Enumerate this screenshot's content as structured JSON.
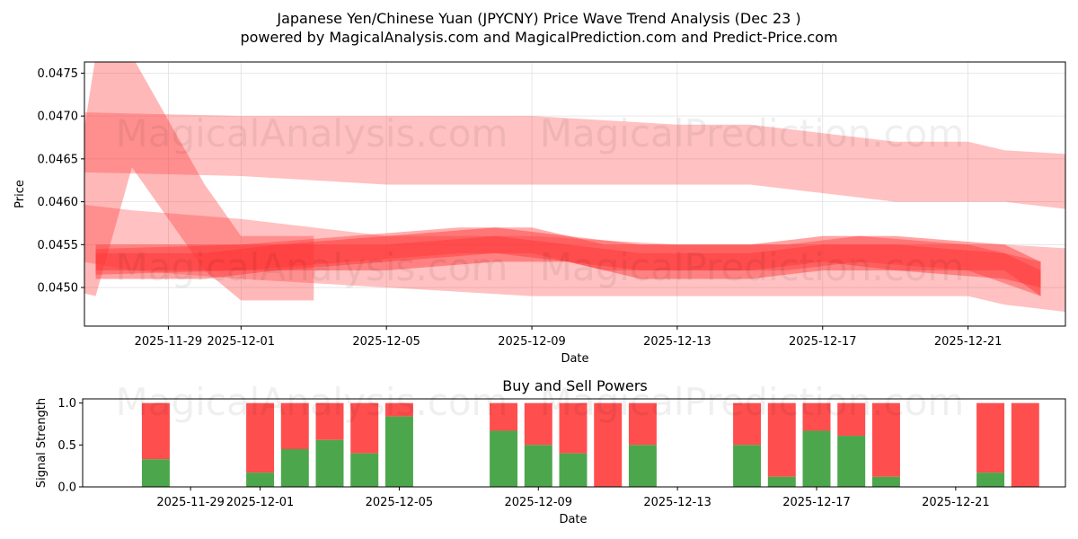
{
  "figure": {
    "title": "Japanese Yen/Chinese Yuan (JPYCNY) Price Wave Trend Analysis (Dec 23 )",
    "subtitle": "powered by MagicalAnalysis.com and MagicalPrediction.com and Predict-Price.com",
    "watermarks": [
      "MagicalAnalysis.com",
      "MagicalPrediction.com"
    ]
  },
  "colors": {
    "buy": "#4ca64c",
    "sell": "#ff4444",
    "wave": "#ff3333",
    "grid": "#e0e0e0"
  },
  "chart_data": [
    {
      "type": "area",
      "name": "price-wave-chart",
      "xlabel": "Date",
      "ylabel": "Price",
      "x_domain": [
        "2025-11-26",
        "2025-12-24"
      ],
      "ylim": [
        0.04455,
        0.04763
      ],
      "yticks": [
        0.045,
        0.0455,
        0.046,
        0.0465,
        0.047,
        0.0475
      ],
      "ytick_labels": [
        "0.0450",
        "0.0455",
        "0.0460",
        "0.0465",
        "0.0470",
        "0.0475"
      ],
      "xticks": [
        "2025-11-29",
        "2025-12-01",
        "2025-12-05",
        "2025-12-09",
        "2025-12-13",
        "2025-12-17",
        "2025-12-21"
      ],
      "grid": true,
      "series": [
        {
          "name": "upper-wave",
          "opacity": 0.3,
          "x": [
            "2025-11-26",
            "2025-12-01",
            "2025-12-05",
            "2025-12-09",
            "2025-12-13",
            "2025-12-15",
            "2025-12-17",
            "2025-12-19",
            "2025-12-21",
            "2025-12-22",
            "2025-12-24"
          ],
          "low": [
            0.04635,
            0.0463,
            0.0462,
            0.0462,
            0.0462,
            0.0462,
            0.0461,
            0.046,
            0.046,
            0.046,
            0.0459
          ],
          "high": [
            0.04705,
            0.047,
            0.047,
            0.047,
            0.0469,
            0.0469,
            0.0468,
            0.0467,
            0.0467,
            0.0466,
            0.04655
          ]
        },
        {
          "name": "spike-wave",
          "opacity": 0.35,
          "x": [
            "2025-11-26",
            "2025-11-27",
            "2025-11-28",
            "2025-11-30",
            "2025-12-01",
            "2025-12-03"
          ],
          "low": [
            0.045,
            0.0449,
            0.0464,
            0.0452,
            0.04485,
            0.04485
          ],
          "high": [
            0.045,
            0.0477,
            0.0477,
            0.0462,
            0.0456,
            0.0456
          ]
        },
        {
          "name": "lower-wave",
          "opacity": 0.3,
          "x": [
            "2025-11-26",
            "2025-11-28",
            "2025-12-01",
            "2025-12-05",
            "2025-12-09",
            "2025-12-13",
            "2025-12-17",
            "2025-12-21",
            "2025-12-22",
            "2025-12-24"
          ],
          "low": [
            0.04535,
            0.0452,
            0.0451,
            0.045,
            0.0449,
            0.0449,
            0.0449,
            0.0449,
            0.0448,
            0.0447
          ],
          "high": [
            0.046,
            0.0459,
            0.0458,
            0.0456,
            0.0456,
            0.0455,
            0.0455,
            0.0455,
            0.0455,
            0.04545
          ]
        },
        {
          "name": "core-wave-a",
          "opacity": 0.45,
          "x": [
            "2025-11-27",
            "2025-11-30",
            "2025-12-02",
            "2025-12-05",
            "2025-12-08",
            "2025-12-10",
            "2025-12-12",
            "2025-12-15",
            "2025-12-17",
            "2025-12-19",
            "2025-12-22",
            "2025-12-23"
          ],
          "low": [
            0.0451,
            0.0451,
            0.0452,
            0.0453,
            0.0454,
            0.0453,
            0.0452,
            0.0452,
            0.0453,
            0.0452,
            0.0452,
            0.0449
          ],
          "high": [
            0.0455,
            0.0455,
            0.0455,
            0.0456,
            0.0457,
            0.0456,
            0.0455,
            0.0455,
            0.0456,
            0.0456,
            0.0455,
            0.0453
          ]
        },
        {
          "name": "core-wave-b",
          "opacity": 0.45,
          "x": [
            "2025-11-27",
            "2025-11-30",
            "2025-12-02",
            "2025-12-05",
            "2025-12-08",
            "2025-12-10",
            "2025-12-12",
            "2025-12-15",
            "2025-12-17",
            "2025-12-19",
            "2025-12-22",
            "2025-12-23"
          ],
          "low": [
            0.0452,
            0.0452,
            0.0452,
            0.0452,
            0.0453,
            0.0453,
            0.0451,
            0.0451,
            0.0452,
            0.0452,
            0.0451,
            0.045
          ],
          "high": [
            0.0454,
            0.0454,
            0.0455,
            0.0455,
            0.0456,
            0.0455,
            0.0454,
            0.0454,
            0.0455,
            0.0455,
            0.0454,
            0.0452
          ]
        },
        {
          "name": "core-wave-c",
          "opacity": 0.4,
          "x": [
            "2025-11-27",
            "2025-12-01",
            "2025-12-04",
            "2025-12-07",
            "2025-12-09",
            "2025-12-11",
            "2025-12-14",
            "2025-12-16",
            "2025-12-18",
            "2025-12-21",
            "2025-12-23"
          ],
          "low": [
            0.04515,
            0.0452,
            0.0453,
            0.0454,
            0.0454,
            0.0452,
            0.0452,
            0.0452,
            0.0453,
            0.0452,
            0.0449
          ],
          "high": [
            0.04545,
            0.0455,
            0.0456,
            0.0457,
            0.0457,
            0.0455,
            0.0455,
            0.0455,
            0.0456,
            0.0455,
            0.0453
          ]
        }
      ]
    },
    {
      "type": "bar",
      "name": "buy-sell-powers-chart",
      "title": "Buy and Sell Powers",
      "xlabel": "Date",
      "ylabel": "Signal Strength",
      "x_domain": [
        "2025-11-26",
        "2025-12-24"
      ],
      "ylim": [
        0,
        1.05
      ],
      "yticks": [
        0.0,
        0.5,
        1.0
      ],
      "ytick_labels": [
        "0.0",
        "0.5",
        "1.0"
      ],
      "xticks": [
        "2025-11-29",
        "2025-12-01",
        "2025-12-05",
        "2025-12-09",
        "2025-12-13",
        "2025-12-17",
        "2025-12-21"
      ],
      "categories": [
        "2025-11-28",
        "2025-12-01",
        "2025-12-02",
        "2025-12-03",
        "2025-12-04",
        "2025-12-05",
        "2025-12-08",
        "2025-12-09",
        "2025-12-10",
        "2025-12-11",
        "2025-12-12",
        "2025-12-15",
        "2025-12-16",
        "2025-12-17",
        "2025-12-18",
        "2025-12-19",
        "2025-12-22",
        "2025-12-23"
      ],
      "series": [
        {
          "name": "Buy",
          "values": [
            0.33,
            0.17,
            0.45,
            0.56,
            0.4,
            0.84,
            0.67,
            0.5,
            0.4,
            0.0,
            0.5,
            0.5,
            0.12,
            0.67,
            0.61,
            0.12,
            0.17,
            0.0
          ]
        },
        {
          "name": "Sell",
          "values": [
            0.67,
            0.83,
            0.55,
            0.44,
            0.6,
            0.16,
            0.33,
            0.5,
            0.6,
            1.0,
            0.5,
            0.5,
            0.88,
            0.33,
            0.39,
            0.88,
            0.83,
            1.0
          ]
        }
      ]
    }
  ]
}
